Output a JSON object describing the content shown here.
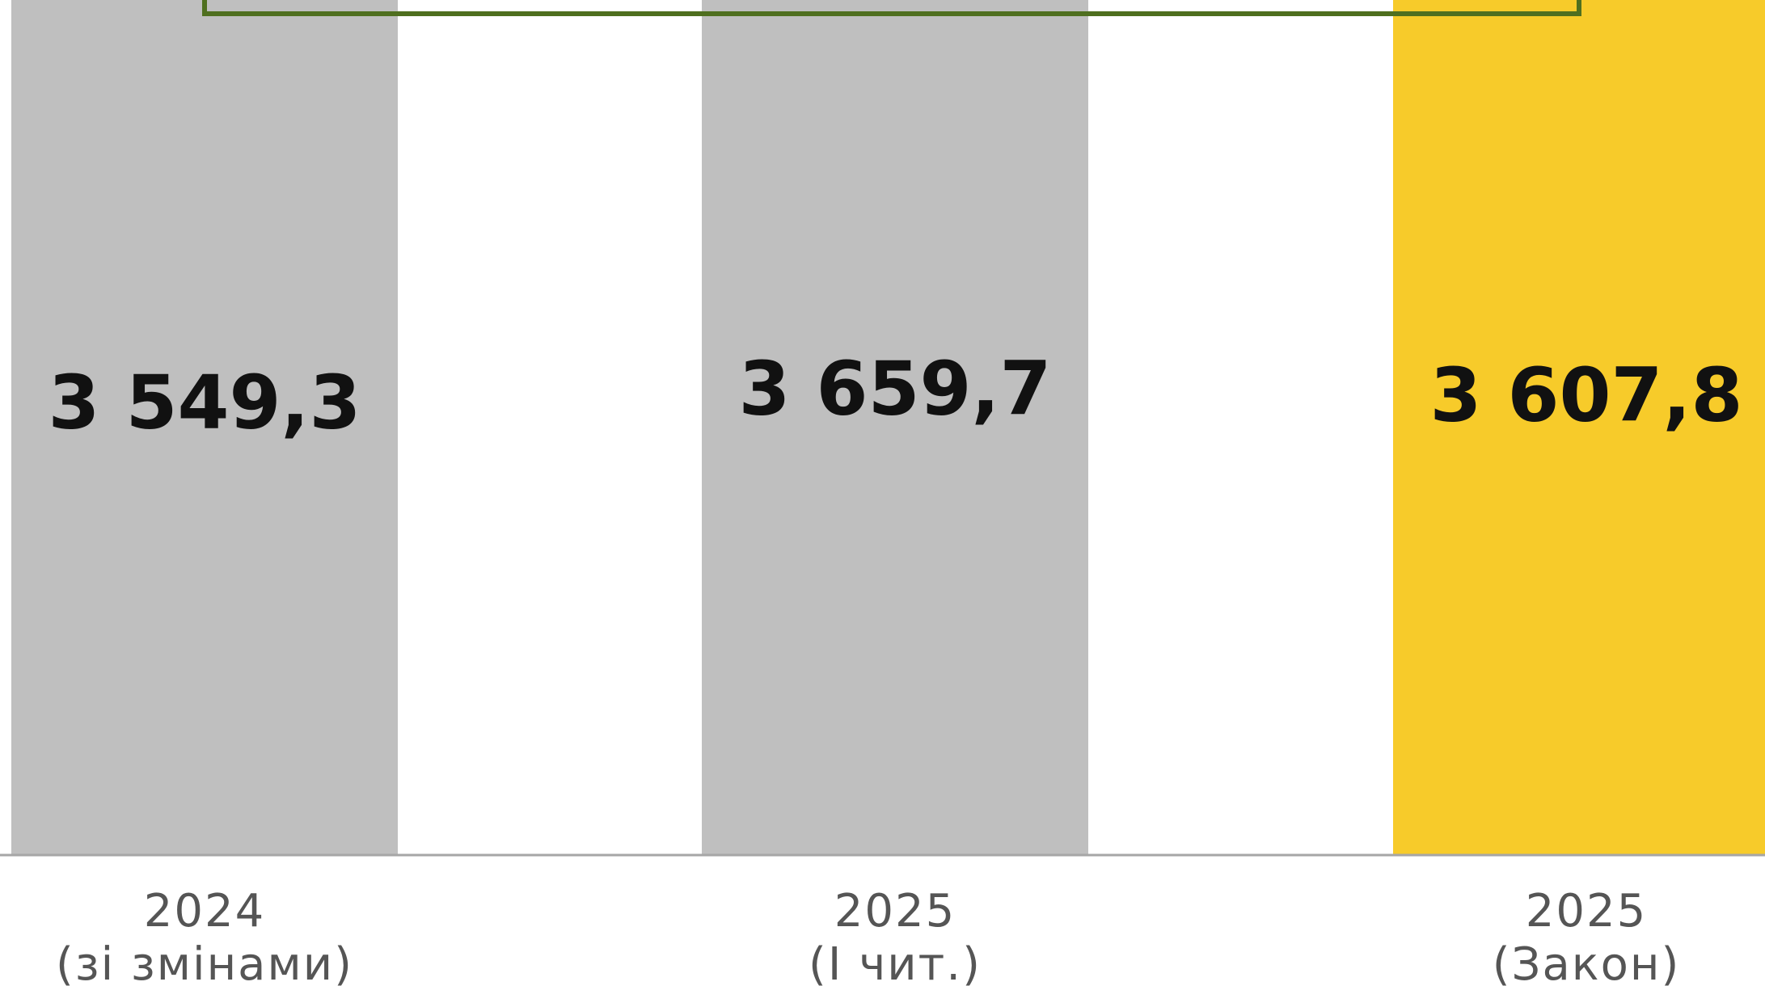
{
  "chart_data": {
    "type": "bar",
    "categories": [
      [
        "2024",
        "(зі змінами)"
      ],
      [
        "2025",
        "(І чит.)"
      ],
      [
        "2025",
        "(Закон)"
      ]
    ],
    "values": [
      3549.3,
      3659.7,
      3607.8
    ],
    "value_labels": [
      "3 549,3",
      "3 659,7",
      "3 607,8"
    ],
    "bar_colors": [
      "#bfbfbf",
      "#bfbfbf",
      "#f7cb2a"
    ],
    "arrow": {
      "from_category": 0,
      "to_category": 2,
      "color": "#4f6f1f"
    },
    "title": "",
    "xlabel": "",
    "ylabel": "",
    "ylim": [
      0,
      3900
    ],
    "grid": false,
    "legend": "none"
  }
}
